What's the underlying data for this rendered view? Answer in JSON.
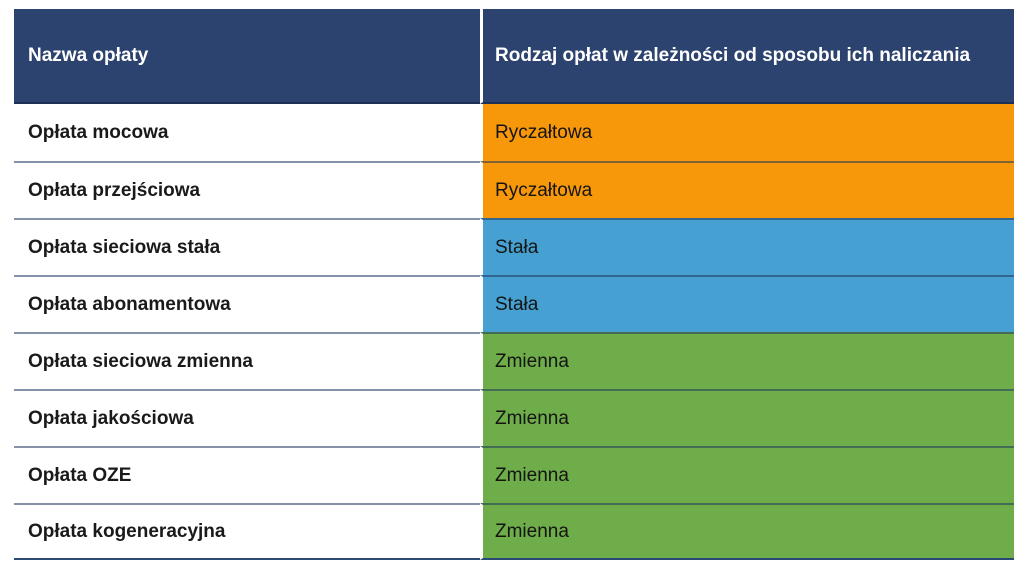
{
  "chart_data": {
    "type": "table",
    "title": "",
    "columns": [
      "Nazwa opłaty",
      "Rodzaj opłat w zależności od sposobu ich naliczania"
    ],
    "rows": [
      {
        "name": "Opłata mocowa",
        "billing_type": "Ryczałtowa",
        "category": "ryczaltowa"
      },
      {
        "name": "Opłata przejściowa",
        "billing_type": "Ryczałtowa",
        "category": "ryczaltowa"
      },
      {
        "name": "Opłata sieciowa stała",
        "billing_type": "Stała",
        "category": "stala"
      },
      {
        "name": "Opłata abonamentowa",
        "billing_type": "Stała",
        "category": "stala"
      },
      {
        "name": "Opłata sieciowa zmienna",
        "billing_type": "Zmienna",
        "category": "zmienna"
      },
      {
        "name": "Opłata jakościowa",
        "billing_type": "Zmienna",
        "category": "zmienna"
      },
      {
        "name": "Opłata OZE",
        "billing_type": "Zmienna",
        "category": "zmienna"
      },
      {
        "name": "Opłata kogeneracyjna",
        "billing_type": "Zmienna",
        "category": "zmienna"
      }
    ],
    "legend_position": "none",
    "grid": false
  },
  "colors": {
    "header_bg": "#2d436f",
    "ryczaltowa": "#f7970a",
    "stala": "#46a0d1",
    "zmienna": "#6ead49",
    "row_separator": "rgba(32,55,92,0.55)",
    "bottom_border": "#2a4a74",
    "header_text": "#ffffff",
    "body_text": "#1a1a1a"
  }
}
